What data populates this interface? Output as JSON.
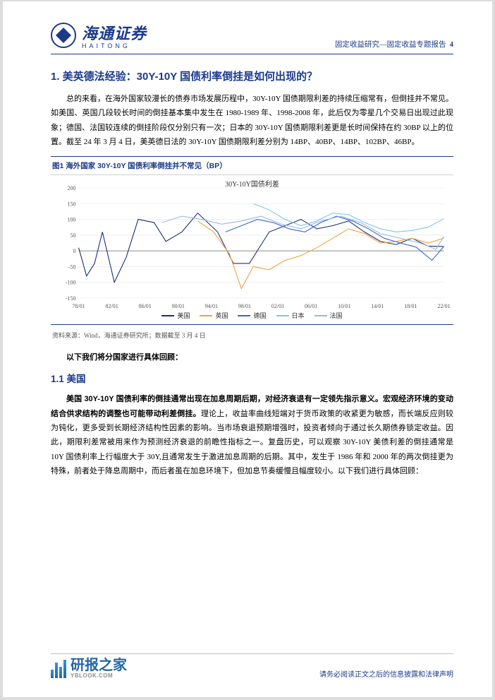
{
  "header": {
    "brand_cn": "海通证券",
    "brand_en": "HAITONG",
    "right_text": "固定收益研究—固定收益专题报告",
    "page_num": "4"
  },
  "h1": "1. 美英德法经验：30Y-10Y 国债利率倒挂是如何出现的？",
  "para1": "总的来看，在海外国家较漫长的债券市场发展历程中，30Y-10Y 国债期限利差的持续压缩常有，但倒挂并不常见。如美国、英国几段较长时间的倒挂基本集中发生在 1980-1989 年、1998-2008 年，此后仅为零星几个交易日出现过此现象；德国、法国较连续的倒挂阶段仅分别只有一次；日本的 30Y-10Y 国债期限利差更是长时间保持在约 30BP 以上的位置。截至 24 年 3 月 4 日，美英德日法的 30Y-10Y 国债期限利差分别为 14BP、40BP、14BP、102BP、46BP。",
  "fig": {
    "title": "图1  海外国家 30Y-10Y 国债利率倒挂并不常见（BP）",
    "chart_title": "30Y-10Y国债利差",
    "source": "资料来源：Wind，海通证券研究所；数据截至 3 月 4 日",
    "type": "line",
    "ylim": [
      -150,
      200
    ],
    "ytick_step": 50,
    "x_labels": [
      "78/01",
      "82/01",
      "86/01",
      "90/01",
      "94/01",
      "98/01",
      "02/01",
      "06/01",
      "10/01",
      "14/01",
      "18/01",
      "22/01"
    ],
    "background_color": "#ffffff",
    "grid_color": "#e6e6e6",
    "axis_color": "#666666",
    "tick_fontsize": 8,
    "line_width": 1.1,
    "series": [
      {
        "name": "美国",
        "color": "#1b2f7a",
        "data": [
          [
            0,
            10
          ],
          [
            4,
            -80
          ],
          [
            8,
            -40
          ],
          [
            12,
            60
          ],
          [
            18,
            -100
          ],
          [
            24,
            -20
          ],
          [
            30,
            100
          ],
          [
            38,
            90
          ],
          [
            44,
            30
          ],
          [
            52,
            60
          ],
          [
            60,
            120
          ],
          [
            70,
            60
          ],
          [
            78,
            -40
          ],
          [
            86,
            -40
          ],
          [
            96,
            60
          ],
          [
            104,
            80
          ],
          [
            112,
            100
          ],
          [
            120,
            70
          ],
          [
            128,
            80
          ],
          [
            136,
            95
          ],
          [
            144,
            60
          ],
          [
            152,
            30
          ],
          [
            160,
            20
          ],
          [
            168,
            40
          ],
          [
            176,
            15
          ],
          [
            184,
            14
          ]
        ]
      },
      {
        "name": "英国",
        "color": "#f2a23a",
        "data": [
          [
            60,
            95
          ],
          [
            68,
            60
          ],
          [
            76,
            -10
          ],
          [
            82,
            -120
          ],
          [
            88,
            -50
          ],
          [
            96,
            -60
          ],
          [
            104,
            -30
          ],
          [
            112,
            -15
          ],
          [
            120,
            10
          ],
          [
            128,
            40
          ],
          [
            136,
            70
          ],
          [
            144,
            55
          ],
          [
            152,
            25
          ],
          [
            160,
            30
          ],
          [
            168,
            40
          ],
          [
            176,
            25
          ],
          [
            184,
            40
          ]
        ]
      },
      {
        "name": "德国",
        "color": "#3569c9",
        "data": [
          [
            74,
            60
          ],
          [
            82,
            80
          ],
          [
            90,
            100
          ],
          [
            98,
            90
          ],
          [
            106,
            70
          ],
          [
            114,
            60
          ],
          [
            122,
            90
          ],
          [
            130,
            110
          ],
          [
            138,
            95
          ],
          [
            146,
            70
          ],
          [
            154,
            40
          ],
          [
            162,
            25
          ],
          [
            170,
            12
          ],
          [
            178,
            -30
          ],
          [
            184,
            14
          ]
        ]
      },
      {
        "name": "日本",
        "color": "#7cc6ec",
        "data": [
          [
            88,
            150
          ],
          [
            96,
            130
          ],
          [
            104,
            100
          ],
          [
            112,
            80
          ],
          [
            120,
            95
          ],
          [
            128,
            120
          ],
          [
            136,
            115
          ],
          [
            144,
            90
          ],
          [
            152,
            70
          ],
          [
            160,
            60
          ],
          [
            168,
            65
          ],
          [
            176,
            75
          ],
          [
            184,
            102
          ]
        ]
      },
      {
        "name": "法国",
        "color": "#9bb7e6",
        "data": [
          [
            42,
            90
          ],
          [
            52,
            110
          ],
          [
            62,
            100
          ],
          [
            72,
            85
          ],
          [
            82,
            95
          ],
          [
            92,
            110
          ],
          [
            102,
            85
          ],
          [
            112,
            70
          ],
          [
            122,
            95
          ],
          [
            132,
            110
          ],
          [
            142,
            90
          ],
          [
            152,
            55
          ],
          [
            162,
            40
          ],
          [
            172,
            25
          ],
          [
            180,
            5
          ],
          [
            184,
            46
          ]
        ]
      }
    ]
  },
  "lead": "以下我们将分国家进行具体回顾：",
  "h2": "1.1 美国",
  "para2_bold": "美国 30Y-10Y 国债利率的倒挂通常出现在加息周期后期，对经济衰退有一定领先指示意义。宏观经济环境的变动结合供求结构的调整也可能带动利差倒挂。",
  "para2_rest": "理论上，收益率曲线短端对于货币政策的收紧更为敏感，而长端反应则较为钝化，更多受到长期经济结构性因素的影响。当市场衰退预期增强时，投资者倾向于通过长久期债券锁定收益。因此，期限利差常被用来作为预测经济衰退的前瞻性指标之一。复盘历史，可以观察 30Y-10Y 美债利差的倒挂通常是 10Y 国债利率上行幅度大于 30Y,且通常发生于激进加息周期的后期。其中，发生于 1986 年和 2000 年的两次倒挂更为特殊，前者处于降息周期中，而后者虽在加息环境下，但加息节奏缓慢且幅度较小。以下我们进行具体回顾：",
  "footer": {
    "disclaimer": "请务必阅读正文之后的信息披露和法律声明",
    "wm_name": "研报之家",
    "wm_url": "YBLOOK.COM"
  }
}
